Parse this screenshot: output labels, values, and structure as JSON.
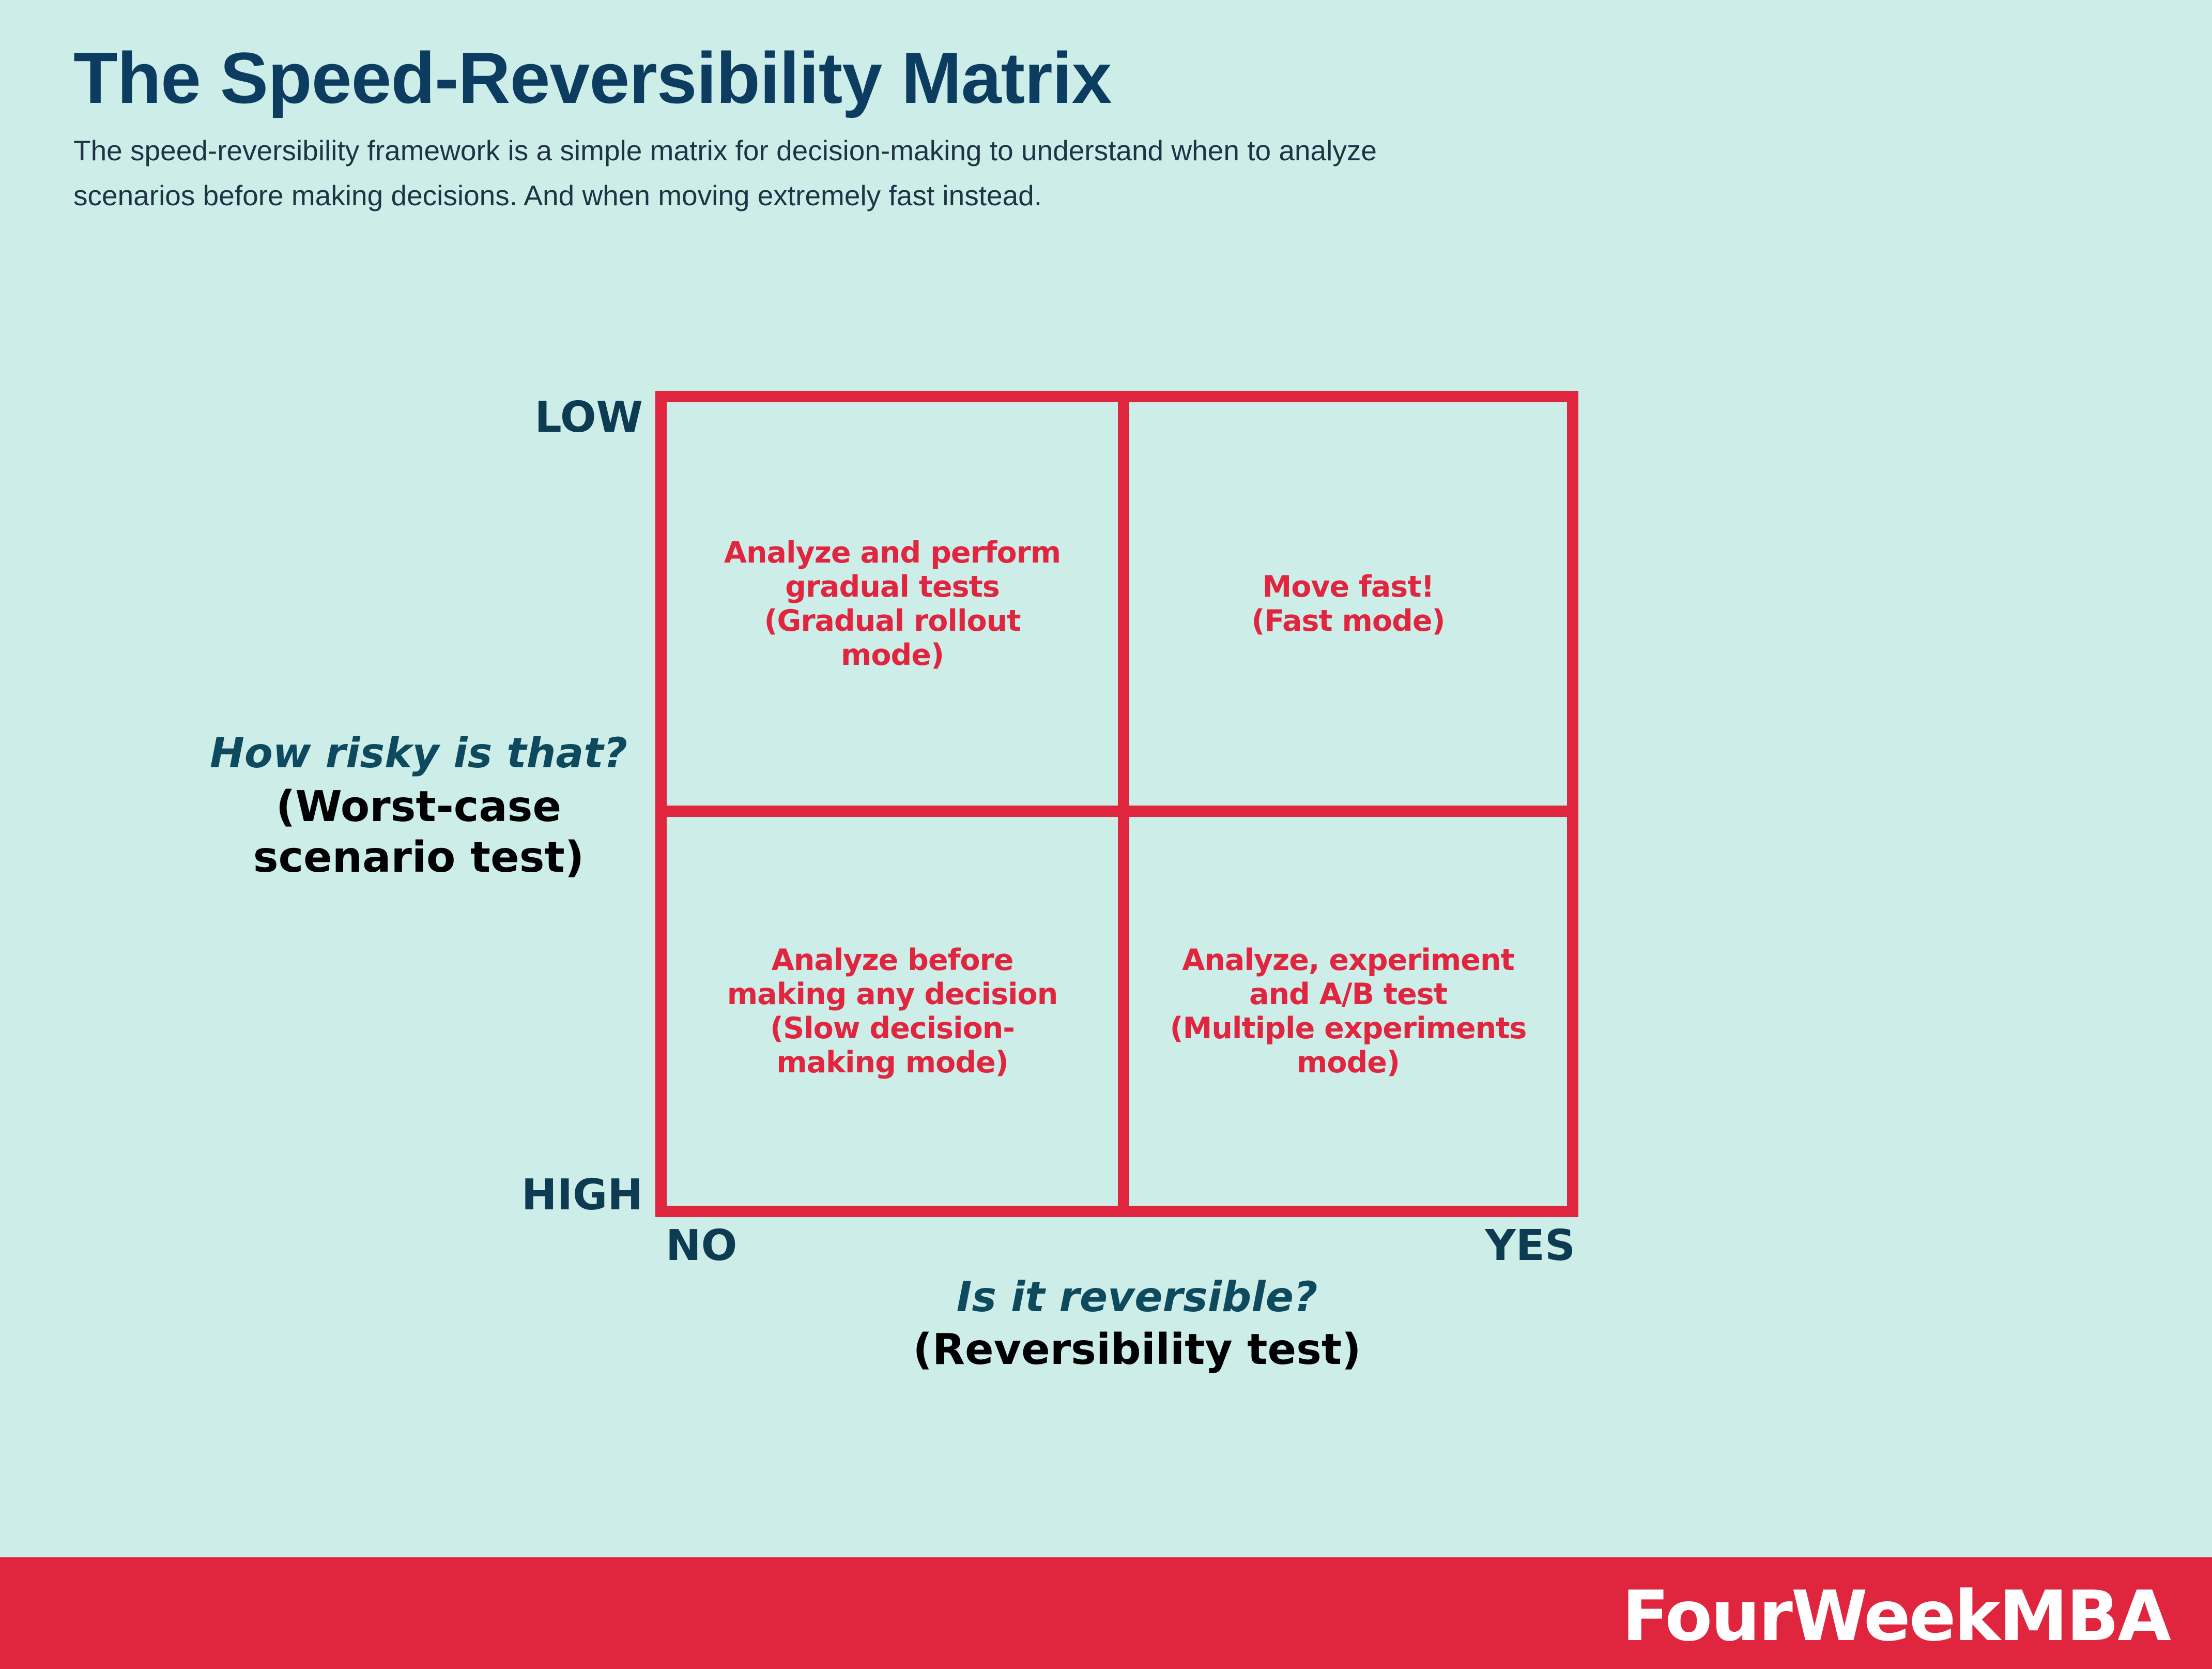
{
  "header": {
    "title": "The Speed-Reversibility Matrix",
    "subtitle_lines": [
      "The speed-reversibility framework is a simple matrix for decision-making to understand when to analyze",
      "scenarios before making decisions. And when moving extremely fast instead."
    ]
  },
  "matrix": {
    "top_left": [
      "Analyze and perform",
      "gradual tests",
      "(Gradual rollout",
      "mode)"
    ],
    "top_right": [
      "Move fast!",
      "(Fast mode)"
    ],
    "bottom_left": [
      "Analyze before",
      "making any decision",
      "(Slow decision-",
      "making mode)"
    ],
    "bottom_right": [
      "Analyze, experiment",
      "and A/B test",
      "(Multiple experiments",
      "mode)"
    ]
  },
  "y_axis": {
    "top_tick": "LOW",
    "bottom_tick": "HIGH",
    "question": "How risky is that?",
    "sub_lines": [
      "(Worst-case",
      "scenario test)"
    ]
  },
  "x_axis": {
    "left_tick": "NO",
    "right_tick": "YES",
    "question": "Is it reversible?",
    "sub": "(Reversibility test)"
  },
  "footer": {
    "brand": "FourWeekMBA"
  },
  "colors": {
    "background": "#cdede9",
    "accent_red": "#e0263f",
    "title_navy": "#0c3d61",
    "axis_teal": "#0d4a5e"
  }
}
